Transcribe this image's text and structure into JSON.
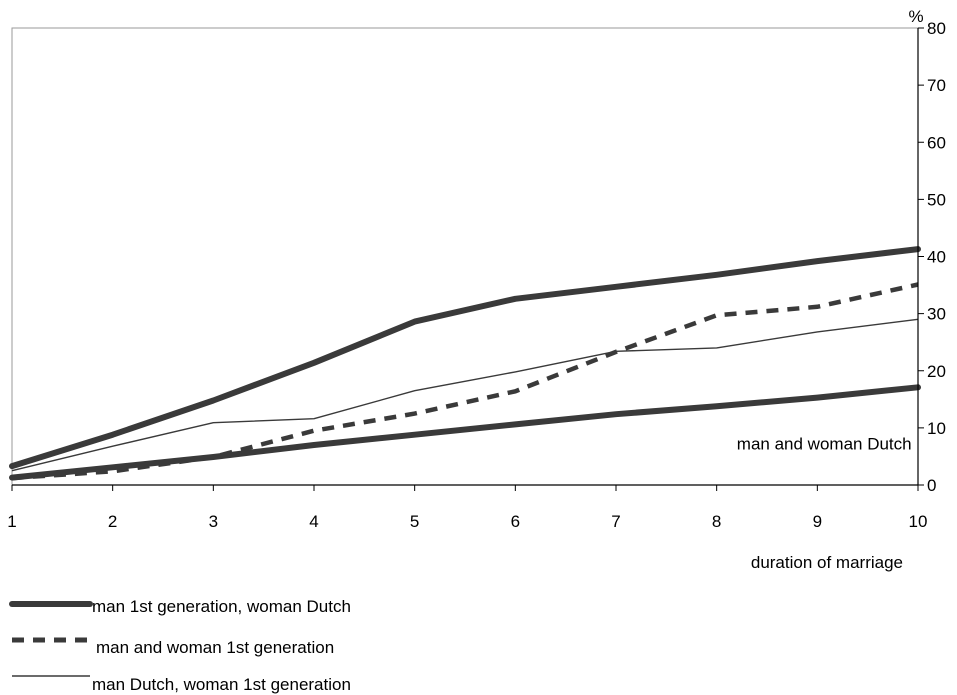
{
  "chart_data": {
    "type": "line",
    "x": [
      1,
      2,
      3,
      4,
      5,
      6,
      7,
      8,
      9,
      10
    ],
    "xlabel": "duration of marriage",
    "ylabel": "%",
    "xlim": [
      1,
      10
    ],
    "ylim": [
      0,
      80
    ],
    "x_ticks": [
      "1",
      "2",
      "3",
      "4",
      "5",
      "6",
      "7",
      "8",
      "9",
      "10"
    ],
    "y_ticks": [
      "0",
      "10",
      "20",
      "30",
      "40",
      "50",
      "60",
      "70",
      "80"
    ],
    "y_axis_side": "right",
    "grid": false,
    "legend_position": "bottom-left",
    "series": [
      {
        "name": "man 1st generation, woman Dutch",
        "style": "thick",
        "color": "#3a3a3a",
        "values": [
          3.3,
          8.8,
          14.8,
          21.4,
          28.6,
          32.6,
          34.7,
          36.8,
          39.2,
          41.3
        ]
      },
      {
        "name": "man and woman 1st generation",
        "style": "dashed",
        "color": "#3a3a3a",
        "values": [
          1.2,
          2.4,
          4.9,
          9.5,
          12.5,
          16.4,
          23.3,
          29.7,
          31.2,
          35.1
        ]
      },
      {
        "name": "man Dutch, woman 1st generation",
        "style": "thin",
        "color": "#3a3a3a",
        "values": [
          2.5,
          6.8,
          10.9,
          11.6,
          16.5,
          19.8,
          23.4,
          24.0,
          26.8,
          29.0
        ]
      },
      {
        "style": "thick",
        "color": "#3a3a3a",
        "values": [
          1.3,
          3.1,
          4.9,
          7.0,
          8.8,
          10.6,
          12.4,
          13.8,
          15.3,
          17.1
        ]
      }
    ],
    "annotations": [
      {
        "text": "man and woman Dutch",
        "x": 8.2,
        "y": 7.3
      }
    ]
  }
}
